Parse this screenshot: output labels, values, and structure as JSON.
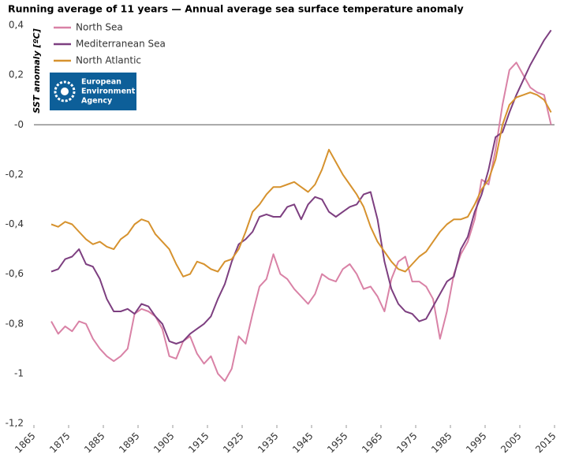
{
  "chart_data": {
    "type": "line",
    "title": "Running average of 11 years — Annual average sea surface temperature anomaly",
    "y_label": "SST anomaly [ºC]",
    "logo": [
      "European",
      "Environment",
      "Agency"
    ],
    "legend": "top-left",
    "x": [
      1870,
      1872,
      1874,
      1876,
      1878,
      1880,
      1882,
      1884,
      1886,
      1888,
      1890,
      1892,
      1894,
      1896,
      1898,
      1900,
      1902,
      1904,
      1906,
      1908,
      1910,
      1912,
      1914,
      1916,
      1918,
      1920,
      1922,
      1924,
      1926,
      1928,
      1930,
      1932,
      1934,
      1936,
      1938,
      1940,
      1942,
      1944,
      1946,
      1948,
      1950,
      1952,
      1954,
      1956,
      1958,
      1960,
      1962,
      1964,
      1966,
      1968,
      1970,
      1972,
      1974,
      1976,
      1978,
      1980,
      1982,
      1984,
      1986,
      1988,
      1990,
      1992,
      1994,
      1996,
      1998,
      2000,
      2002,
      2004,
      2006,
      2008,
      2010,
      2012,
      2014
    ],
    "series": [
      {
        "name": "North Sea",
        "color": "#d982a6",
        "values": [
          -0.79,
          -0.84,
          -0.81,
          -0.83,
          -0.79,
          -0.8,
          -0.86,
          -0.9,
          -0.93,
          -0.95,
          -0.93,
          -0.9,
          -0.76,
          -0.74,
          -0.75,
          -0.77,
          -0.82,
          -0.93,
          -0.94,
          -0.87,
          -0.85,
          -0.92,
          -0.96,
          -0.93,
          -1.0,
          -1.03,
          -0.98,
          -0.85,
          -0.88,
          -0.76,
          -0.65,
          -0.62,
          -0.52,
          -0.6,
          -0.62,
          -0.66,
          -0.69,
          -0.72,
          -0.68,
          -0.6,
          -0.62,
          -0.63,
          -0.58,
          -0.56,
          -0.6,
          -0.66,
          -0.65,
          -0.69,
          -0.75,
          -0.62,
          -0.55,
          -0.53,
          -0.63,
          -0.63,
          -0.65,
          -0.7,
          -0.86,
          -0.75,
          -0.6,
          -0.52,
          -0.47,
          -0.38,
          -0.22,
          -0.24,
          -0.1,
          0.08,
          0.22,
          0.25,
          0.2,
          0.15,
          0.13,
          0.12,
          0.0
        ]
      },
      {
        "name": "Mediterranean Sea",
        "color": "#7d3f80",
        "values": [
          -0.59,
          -0.58,
          -0.54,
          -0.53,
          -0.5,
          -0.56,
          -0.57,
          -0.62,
          -0.7,
          -0.75,
          -0.75,
          -0.74,
          -0.76,
          -0.72,
          -0.73,
          -0.77,
          -0.8,
          -0.87,
          -0.88,
          -0.87,
          -0.84,
          -0.82,
          -0.8,
          -0.77,
          -0.7,
          -0.64,
          -0.55,
          -0.48,
          -0.46,
          -0.43,
          -0.37,
          -0.36,
          -0.37,
          -0.37,
          -0.33,
          -0.32,
          -0.38,
          -0.32,
          -0.29,
          -0.3,
          -0.35,
          -0.37,
          -0.35,
          -0.33,
          -0.32,
          -0.28,
          -0.27,
          -0.38,
          -0.55,
          -0.66,
          -0.72,
          -0.75,
          -0.76,
          -0.79,
          -0.78,
          -0.73,
          -0.68,
          -0.63,
          -0.61,
          -0.5,
          -0.45,
          -0.35,
          -0.28,
          -0.18,
          -0.05,
          -0.03,
          0.05,
          0.12,
          0.18,
          0.24,
          0.29,
          0.34,
          0.38
        ]
      },
      {
        "name": "North Atlantic",
        "color": "#d6922e",
        "values": [
          -0.4,
          -0.41,
          -0.39,
          -0.4,
          -0.43,
          -0.46,
          -0.48,
          -0.47,
          -0.49,
          -0.5,
          -0.46,
          -0.44,
          -0.4,
          -0.38,
          -0.39,
          -0.44,
          -0.47,
          -0.5,
          -0.56,
          -0.61,
          -0.6,
          -0.55,
          -0.56,
          -0.58,
          -0.59,
          -0.55,
          -0.54,
          -0.5,
          -0.43,
          -0.35,
          -0.32,
          -0.28,
          -0.25,
          -0.25,
          -0.24,
          -0.23,
          -0.25,
          -0.27,
          -0.24,
          -0.18,
          -0.1,
          -0.15,
          -0.2,
          -0.24,
          -0.28,
          -0.33,
          -0.41,
          -0.47,
          -0.51,
          -0.55,
          -0.58,
          -0.59,
          -0.56,
          -0.53,
          -0.51,
          -0.47,
          -0.43,
          -0.4,
          -0.38,
          -0.38,
          -0.37,
          -0.32,
          -0.26,
          -0.22,
          -0.14,
          0.0,
          0.08,
          0.11,
          0.12,
          0.13,
          0.12,
          0.1,
          0.05
        ]
      }
    ],
    "xlim": [
      1865,
      2015
    ],
    "xticks": [
      1865,
      1875,
      1885,
      1895,
      1905,
      1915,
      1925,
      1935,
      1945,
      1955,
      1965,
      1975,
      1985,
      1995,
      2005,
      2015
    ],
    "ylim": [
      -1.2,
      0.4
    ],
    "yticks": [
      {
        "value": 0.4,
        "label": "0,4"
      },
      {
        "value": 0.2,
        "label": "0,2"
      },
      {
        "value": 0,
        "label": "-0"
      },
      {
        "value": -0.2,
        "label": "-0,2"
      },
      {
        "value": -0.4,
        "label": "-0,4"
      },
      {
        "value": -0.6,
        "label": "-0,6"
      },
      {
        "value": -0.8,
        "label": "-0,8"
      },
      {
        "value": -1,
        "label": "-1"
      },
      {
        "value": -1.2,
        "label": "-1,2"
      }
    ],
    "zero_line": true
  }
}
